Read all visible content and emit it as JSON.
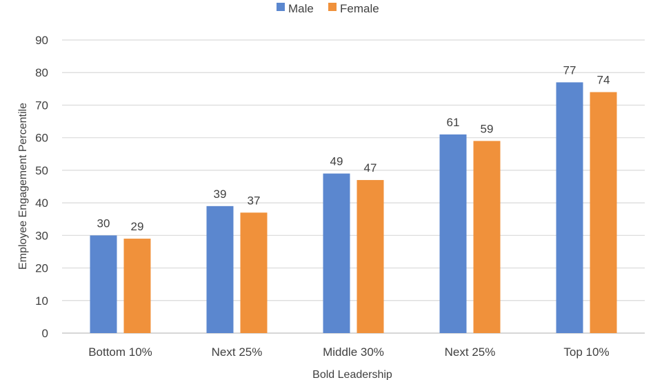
{
  "chart_data": {
    "type": "bar",
    "categories": [
      "Bottom 10%",
      "Next 25%",
      "Middle 30%",
      "Next 25%",
      "Top 10%"
    ],
    "series": [
      {
        "name": "Male",
        "values": [
          30,
          39,
          49,
          61,
          77
        ],
        "color": "#5b87cf"
      },
      {
        "name": "Female",
        "values": [
          29,
          37,
          47,
          59,
          74
        ],
        "color": "#f0913b"
      }
    ],
    "title": "",
    "xlabel": "Bold Leadership",
    "ylabel": "Employee Engagement Percentile",
    "ylim": [
      0,
      90
    ],
    "yticks": [
      0,
      10,
      20,
      30,
      40,
      50,
      60,
      70,
      80,
      90
    ],
    "grid": true,
    "legend": "top-center",
    "gridColor": "#d9d9d9",
    "axisColor": "#bfbfbf"
  }
}
